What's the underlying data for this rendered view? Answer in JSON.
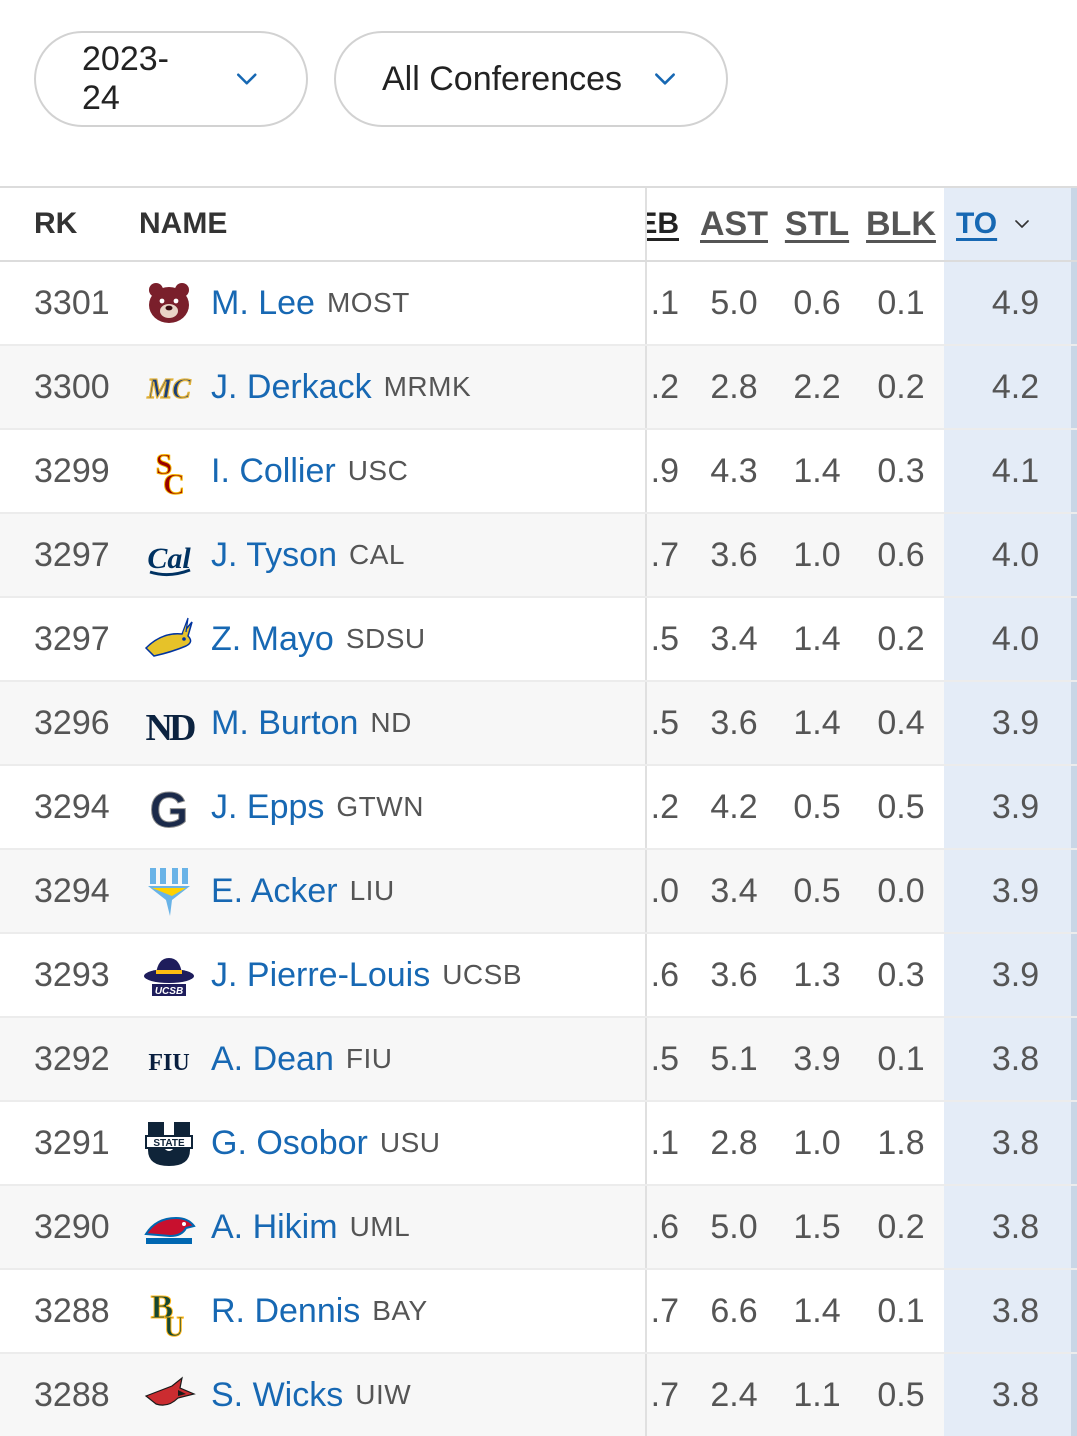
{
  "filters": {
    "season": "2023-24",
    "conference": "All Conferences"
  },
  "table": {
    "headers": {
      "rk": "RK",
      "name": "NAME",
      "reb": "REB",
      "ast": "AST",
      "stl": "STL",
      "blk": "BLK",
      "to": "TO"
    },
    "sorted_column": "TO",
    "rows": [
      {
        "rk": "3301",
        "player": "M. Lee",
        "team": "MOST",
        "reb": ".1",
        "ast": "5.0",
        "stl": "0.6",
        "blk": "0.1",
        "to": "4.9",
        "logo_icon": "missouri-state-bear-logo",
        "logo_color": "#7a1f2b"
      },
      {
        "rk": "3300",
        "player": "J. Derkack",
        "team": "MRMK",
        "reb": ".2",
        "ast": "2.8",
        "stl": "2.2",
        "blk": "0.2",
        "to": "4.2",
        "logo_icon": "merrimack-mc-logo",
        "logo_color": "#1a3e7a"
      },
      {
        "rk": "3299",
        "player": "I. Collier",
        "team": "USC",
        "reb": ".9",
        "ast": "4.3",
        "stl": "1.4",
        "blk": "0.3",
        "to": "4.1",
        "logo_icon": "usc-sc-logo",
        "logo_color": "#990000"
      },
      {
        "rk": "3297",
        "player": "J. Tyson",
        "team": "CAL",
        "reb": ".7",
        "ast": "3.6",
        "stl": "1.0",
        "blk": "0.6",
        "to": "4.0",
        "logo_icon": "cal-script-logo",
        "logo_color": "#003262"
      },
      {
        "rk": "3297",
        "player": "Z. Mayo",
        "team": "SDSU",
        "reb": ".5",
        "ast": "3.4",
        "stl": "1.4",
        "blk": "0.2",
        "to": "4.0",
        "logo_icon": "jackrabbit-logo",
        "logo_color": "#e6c229"
      },
      {
        "rk": "3296",
        "player": "M. Burton",
        "team": "ND",
        "reb": ".5",
        "ast": "3.6",
        "stl": "1.4",
        "blk": "0.4",
        "to": "3.9",
        "logo_icon": "notre-dame-nd-logo",
        "logo_color": "#0c2340"
      },
      {
        "rk": "3294",
        "player": "J. Epps",
        "team": "GTWN",
        "reb": ".2",
        "ast": "4.2",
        "stl": "0.5",
        "blk": "0.5",
        "to": "3.9",
        "logo_icon": "georgetown-g-logo",
        "logo_color": "#1b2a4a"
      },
      {
        "rk": "3294",
        "player": "E. Acker",
        "team": "LIU",
        "reb": ".0",
        "ast": "3.4",
        "stl": "0.5",
        "blk": "0.0",
        "to": "3.9",
        "logo_icon": "liu-shark-logo",
        "logo_color": "#69b3e7"
      },
      {
        "rk": "3293",
        "player": "J. Pierre-Louis",
        "team": "UCSB",
        "reb": ".6",
        "ast": "3.6",
        "stl": "1.3",
        "blk": "0.3",
        "to": "3.9",
        "logo_icon": "ucsb-gaucho-hat-logo",
        "logo_color": "#1e1d5c"
      },
      {
        "rk": "3292",
        "player": "A. Dean",
        "team": "FIU",
        "reb": ".5",
        "ast": "5.1",
        "stl": "3.9",
        "blk": "0.1",
        "to": "3.8",
        "logo_icon": "fiu-wordmark-logo",
        "logo_color": "#081e3f"
      },
      {
        "rk": "3291",
        "player": "G. Osobor",
        "team": "USU",
        "reb": ".1",
        "ast": "2.8",
        "stl": "1.0",
        "blk": "1.8",
        "to": "3.8",
        "logo_icon": "utah-state-u-logo",
        "logo_color": "#0f2439"
      },
      {
        "rk": "3290",
        "player": "A. Hikim",
        "team": "UML",
        "reb": ".6",
        "ast": "5.0",
        "stl": "1.5",
        "blk": "0.2",
        "to": "3.8",
        "logo_icon": "umass-lowell-hawk-logo",
        "logo_color": "#c8102e"
      },
      {
        "rk": "3288",
        "player": "R. Dennis",
        "team": "BAY",
        "reb": ".7",
        "ast": "6.6",
        "stl": "1.4",
        "blk": "0.1",
        "to": "3.8",
        "logo_icon": "baylor-bu-logo",
        "logo_color": "#154734"
      },
      {
        "rk": "3288",
        "player": "S. Wicks",
        "team": "UIW",
        "reb": ".7",
        "ast": "2.4",
        "stl": "1.1",
        "blk": "0.5",
        "to": "3.8",
        "logo_icon": "cardinal-bird-logo",
        "logo_color": "#cb2c30"
      }
    ]
  },
  "colors": {
    "link": "#1768b3",
    "sorted_column_bg": "#e4ecf7"
  }
}
